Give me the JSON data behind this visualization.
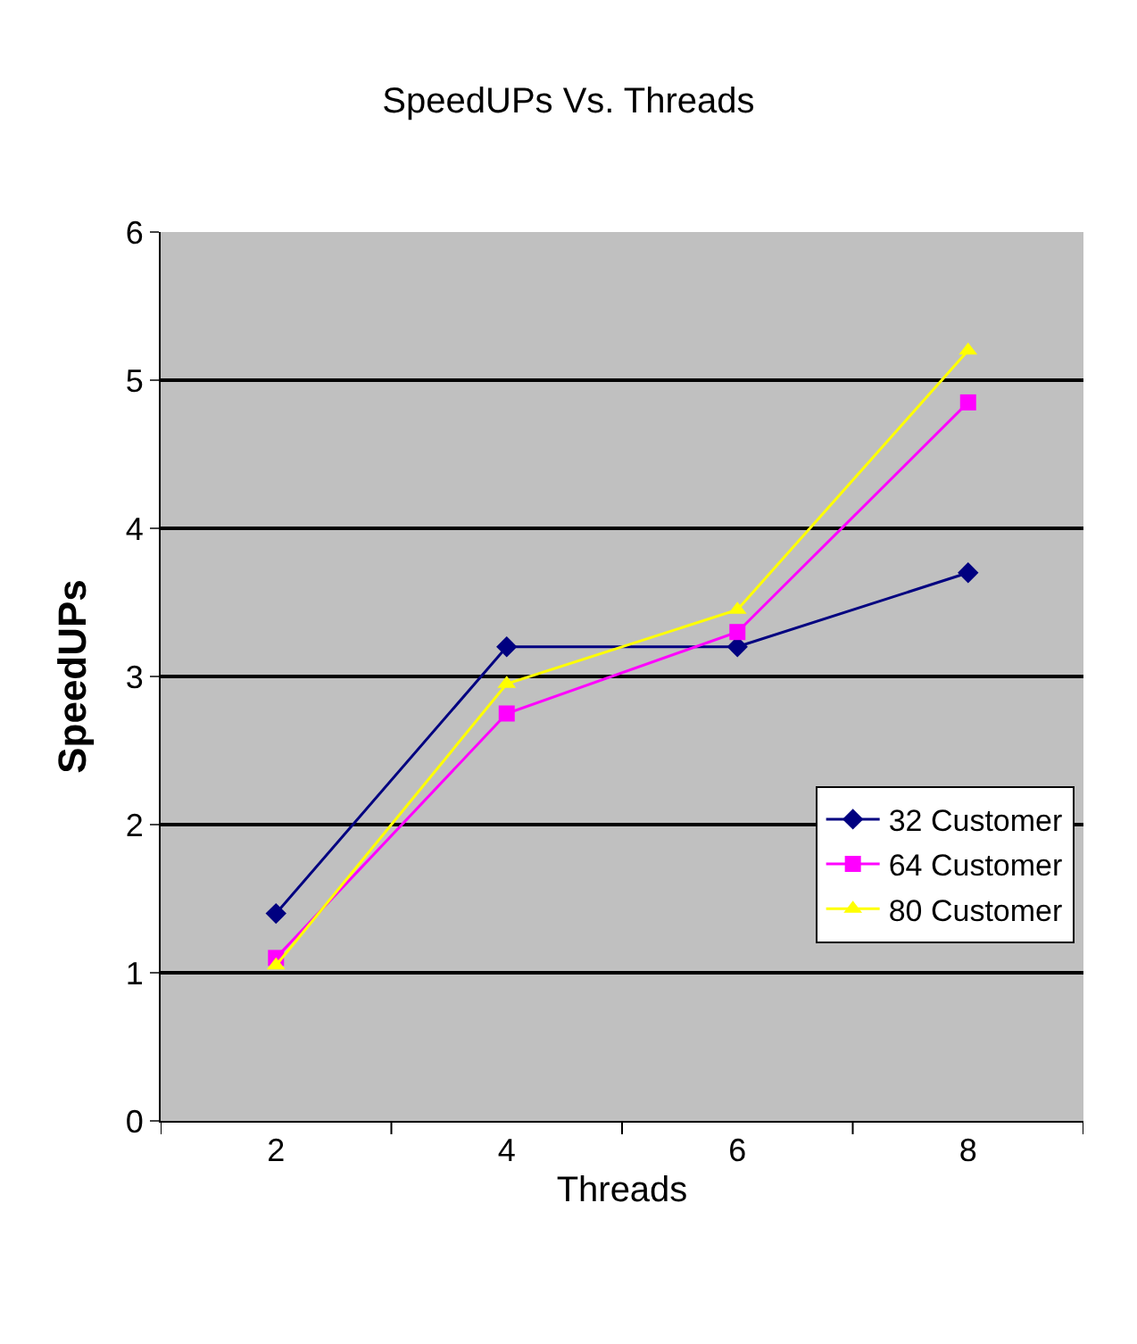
{
  "chart_data": {
    "type": "line",
    "title": "SpeedUPs Vs. Threads",
    "xlabel": "Threads",
    "ylabel": "SpeedUPs",
    "categories": [
      "2",
      "4",
      "6",
      "8"
    ],
    "series": [
      {
        "name": "32 Customer",
        "color": "#000080",
        "marker": "diamond",
        "values": [
          1.4,
          3.2,
          3.2,
          3.7
        ]
      },
      {
        "name": "64 Customer",
        "color": "#ff00ff",
        "marker": "square",
        "values": [
          1.1,
          2.75,
          3.3,
          4.85
        ]
      },
      {
        "name": "80 Customer",
        "color": "#ffff00",
        "marker": "triangle",
        "values": [
          1.05,
          2.95,
          3.45,
          5.2
        ]
      }
    ],
    "ylim": [
      0,
      6
    ],
    "yticks": [
      0,
      1,
      2,
      3,
      4,
      5,
      6
    ],
    "grid": "y",
    "legend": "bottom right",
    "line_style": "solid"
  }
}
